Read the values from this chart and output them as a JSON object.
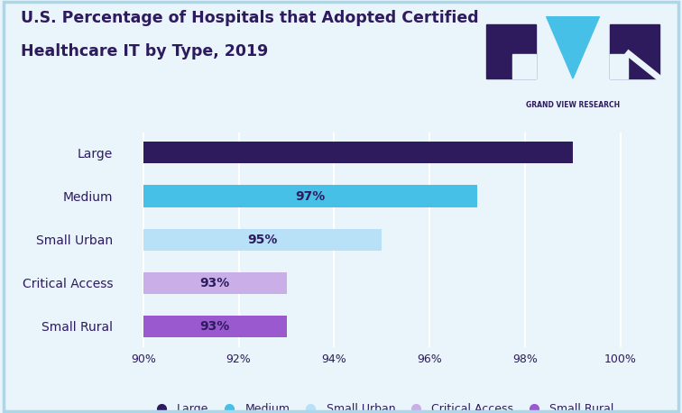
{
  "title_line1": "U.S. Percentage of Hospitals that Adopted Certified",
  "title_line2": "Healthcare IT by Type, 2019",
  "categories": [
    "Small Rural",
    "Critical Access",
    "Small Urban",
    "Medium",
    "Large"
  ],
  "values": [
    93,
    93,
    95,
    97,
    99
  ],
  "bar_colors": [
    "#9b59d0",
    "#c9aee8",
    "#b8e0f7",
    "#47c0e8",
    "#2d1b5e"
  ],
  "label_color": "#2d1b5e",
  "xlim": [
    89.5,
    100.5
  ],
  "xticks": [
    90,
    92,
    94,
    96,
    98,
    100
  ],
  "xtick_labels": [
    "90%",
    "92%",
    "94%",
    "96%",
    "98%",
    "100%"
  ],
  "background_color": "#eaf4fb",
  "plot_background": "#eaf4fb",
  "grid_color": "#ffffff",
  "legend_entries": [
    {
      "label": "Large",
      "color": "#2d1b5e"
    },
    {
      "label": "Medium",
      "color": "#47c0e8"
    },
    {
      "label": "Small Urban",
      "color": "#b8e0f7"
    },
    {
      "label": "Critical Access",
      "color": "#c9aee8"
    },
    {
      "label": "Small Rural",
      "color": "#9b59d0"
    }
  ],
  "title_fontsize": 12.5,
  "bar_height": 0.5,
  "bar_text_fontsize": 10,
  "tick_fontsize": 9,
  "ytick_fontsize": 10
}
